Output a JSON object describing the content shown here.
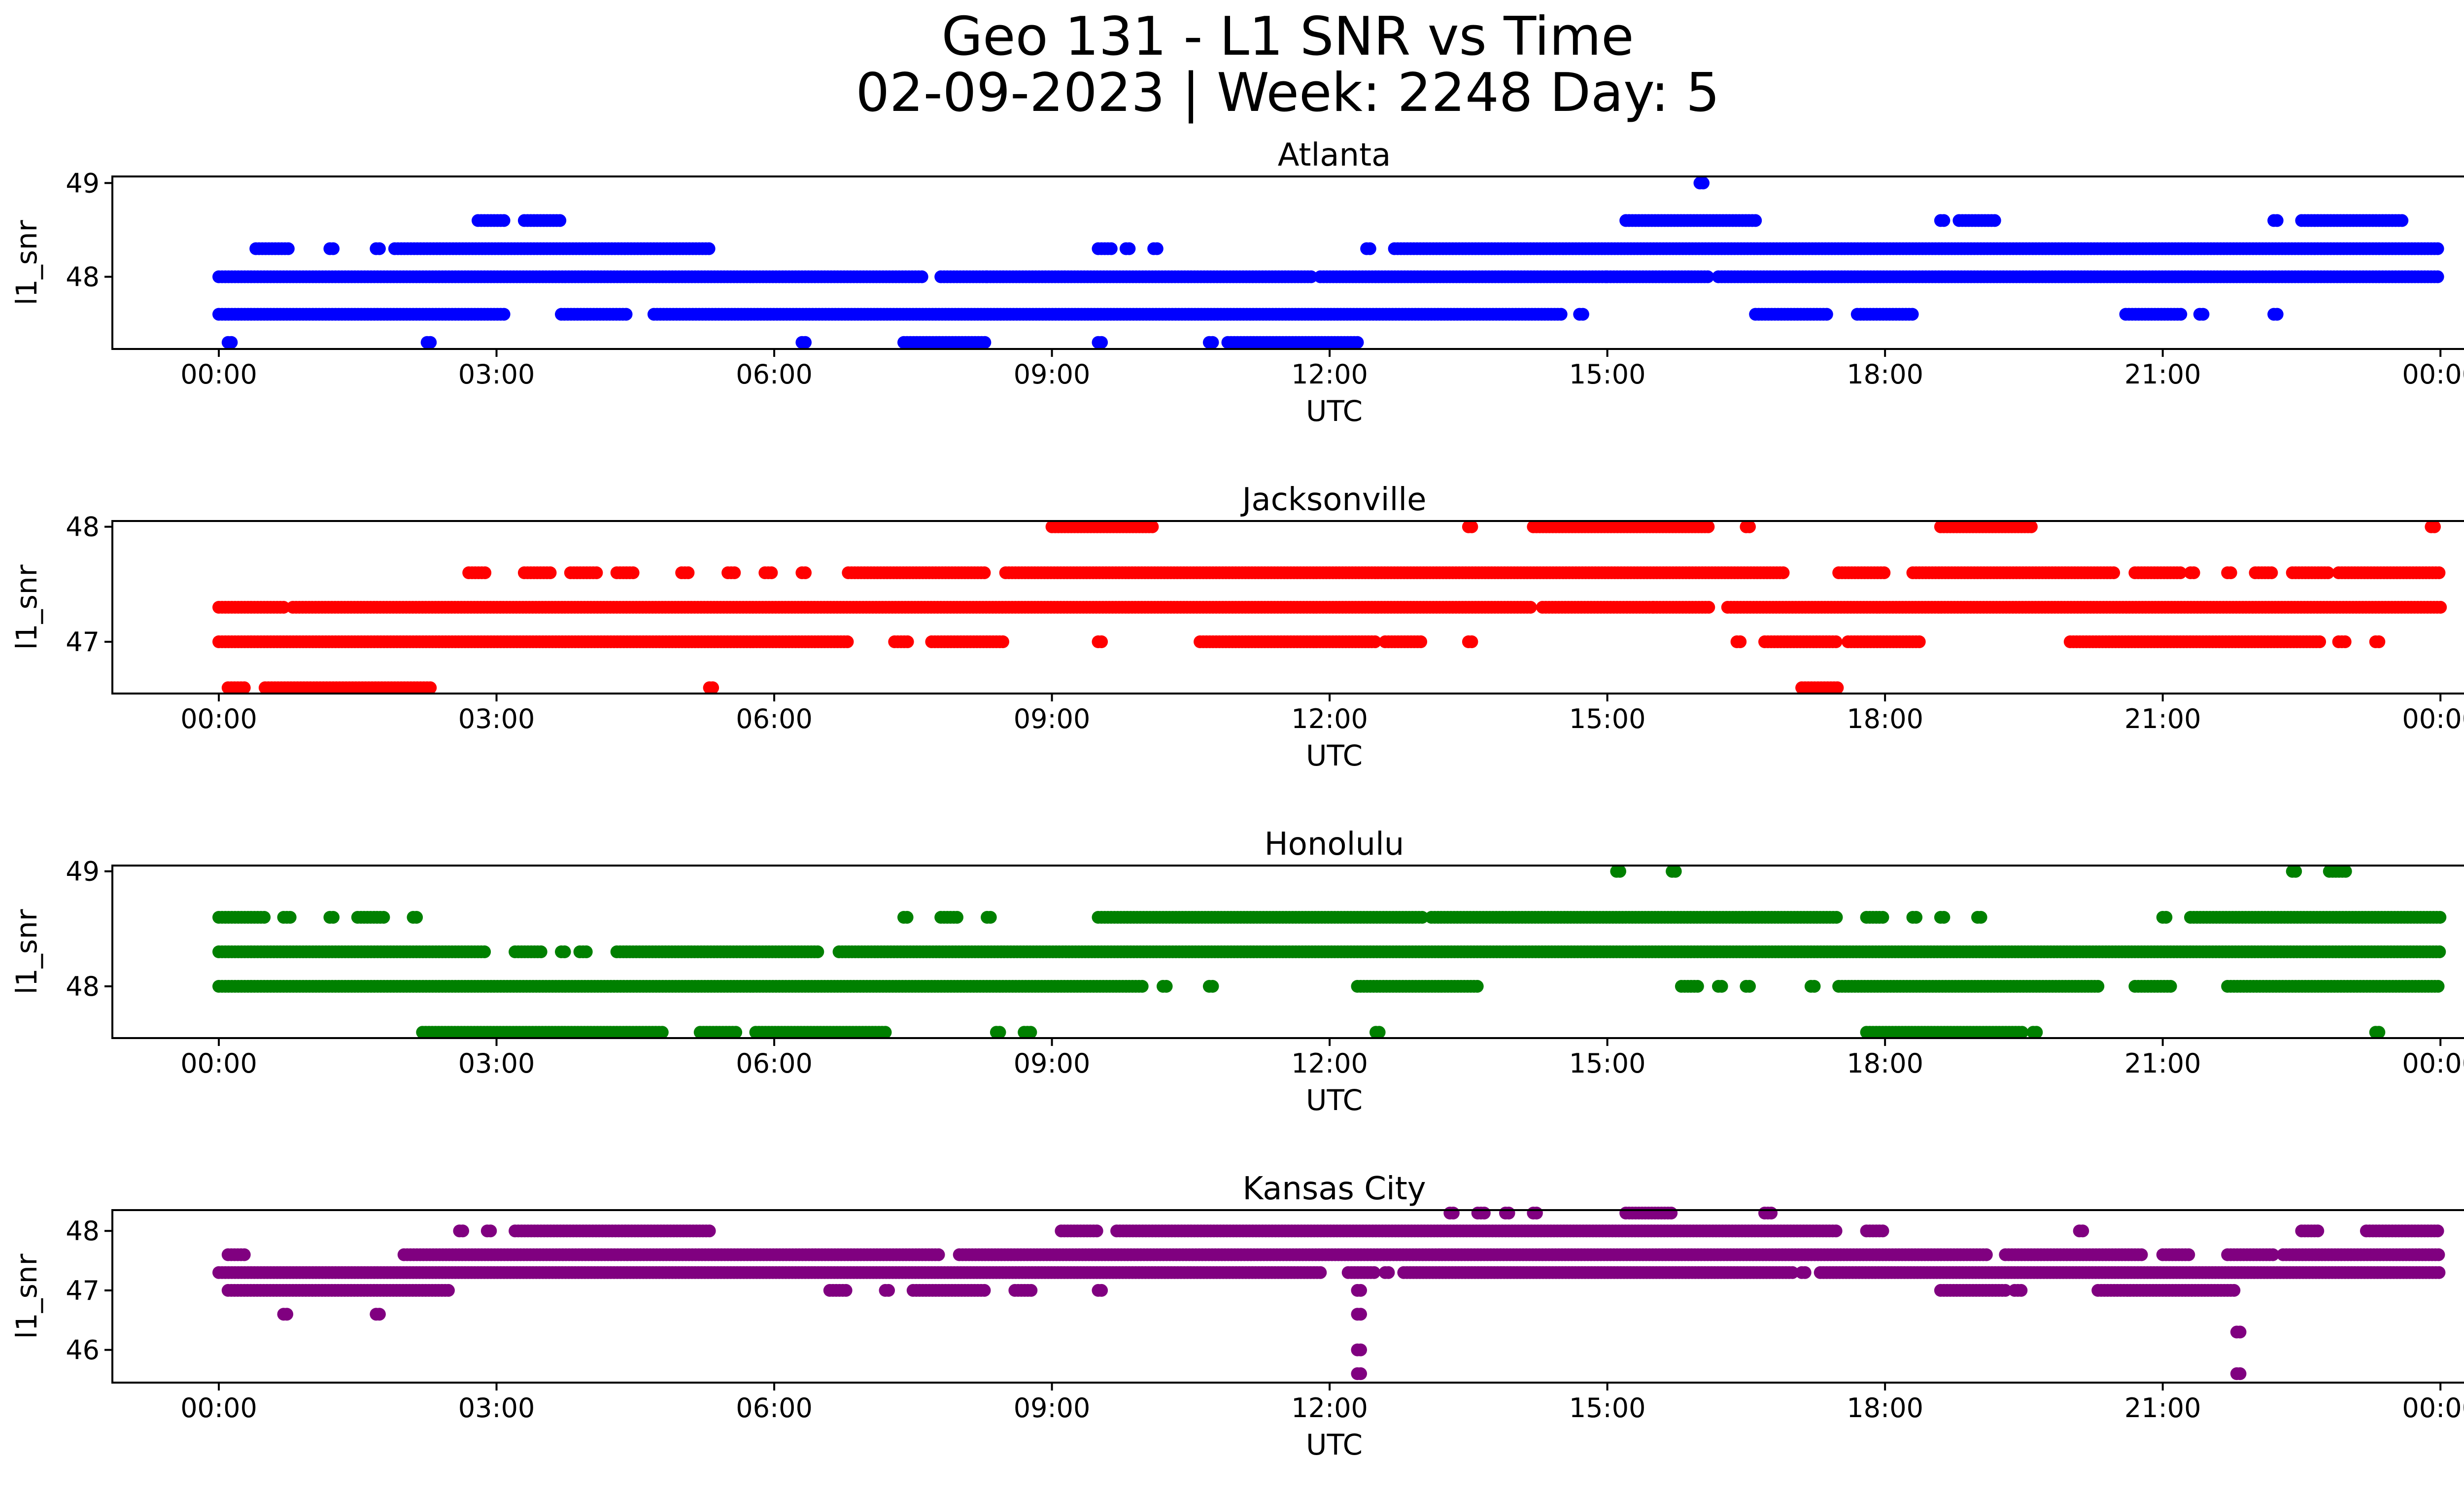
{
  "chart_data": {
    "type": "scatter",
    "title_line1": "Geo 131 - L1 SNR vs Time",
    "title_line2": "02-09-2023 | Week: 2248 Day: 5",
    "xlabel": "UTC",
    "ylabel": "l1_snr",
    "x_unit": "hours UTC",
    "xlim": [
      -1.15,
      25.25
    ],
    "x_ticks": [
      0,
      3,
      6,
      9,
      12,
      15,
      18,
      21,
      24
    ],
    "x_tick_labels": [
      "00:00",
      "03:00",
      "06:00",
      "09:00",
      "12:00",
      "15:00",
      "18:00",
      "21:00",
      "00:00"
    ],
    "grid": false,
    "panels": [
      {
        "name": "Atlanta",
        "color": "#0000ff",
        "ylim": [
          47.23,
          49.07
        ],
        "y_ticks": [
          48,
          49
        ],
        "levels": [
          {
            "y": 48.3,
            "segments": [
              [
                0.4,
                0.75
              ],
              [
                1.2,
                1.25
              ],
              [
                1.7,
                1.75
              ],
              [
                1.9,
                5.3
              ],
              [
                9.5,
                9.65
              ],
              [
                9.8,
                9.85
              ],
              [
                10.1,
                10.15
              ],
              [
                12.4,
                12.45
              ],
              [
                12.7,
                24
              ]
            ]
          },
          {
            "y": 48.0,
            "segments": [
              [
                0,
                7.6
              ],
              [
                7.8,
                8.3
              ],
              [
                8.3,
                11.8
              ],
              [
                11.9,
                15
              ],
              [
                15,
                16.1
              ],
              [
                16.2,
                24
              ]
            ]
          },
          {
            "y": 47.6,
            "segments": [
              [
                0,
                3.1
              ],
              [
                3.7,
                4.4
              ],
              [
                4.7,
                14.5
              ],
              [
                14.7,
                14.75
              ],
              [
                16.6,
                17.4
              ],
              [
                17.7,
                18.3
              ],
              [
                20.6,
                21.2
              ],
              [
                21.4,
                21.45
              ],
              [
                22.2,
                22.25
              ]
            ]
          },
          {
            "y": 48.6,
            "segments": [
              [
                2.8,
                3.1
              ],
              [
                3.3,
                3.7
              ],
              [
                15.2,
                16.6
              ],
              [
                18.6,
                18.65
              ],
              [
                18.8,
                19.2
              ],
              [
                22.2,
                22.25
              ],
              [
                22.5,
                23.6
              ]
            ]
          },
          {
            "y": 47.3,
            "segments": [
              [
                0.1,
                0.15
              ],
              [
                2.25,
                2.3
              ],
              [
                6.3,
                6.35
              ],
              [
                7.4,
                8.3
              ],
              [
                9.5,
                9.55
              ],
              [
                10.7,
                10.75
              ],
              [
                10.9,
                12.3
              ]
            ]
          },
          {
            "y": 49.0,
            "segments": [
              [
                16.0,
                16.05
              ]
            ]
          }
        ]
      },
      {
        "name": "Jacksonville",
        "color": "#ff0000",
        "ylim": [
          46.55,
          48.05
        ],
        "y_ticks": [
          47,
          48
        ],
        "levels": [
          {
            "y": 47.3,
            "segments": [
              [
                0,
                0.7
              ],
              [
                0.8,
                14.2
              ],
              [
                14.3,
                15.5
              ],
              [
                15.5,
                16.1
              ],
              [
                16.3,
                24
              ]
            ]
          },
          {
            "y": 47.0,
            "segments": [
              [
                0,
                6.8
              ],
              [
                7.3,
                7.45
              ],
              [
                7.7,
                8.5
              ],
              [
                9.5,
                9.55
              ],
              [
                10.6,
                12.5
              ],
              [
                12.6,
                13.0
              ],
              [
                13.5,
                13.55
              ],
              [
                16.4,
                16.45
              ],
              [
                16.7,
                17.5
              ],
              [
                17.6,
                18.4
              ],
              [
                20.0,
                22.7
              ],
              [
                22.9,
                23.0
              ],
              [
                23.3,
                23.35
              ]
            ]
          },
          {
            "y": 47.6,
            "segments": [
              [
                2.7,
                2.9
              ],
              [
                3.3,
                3.6
              ],
              [
                3.8,
                4.1
              ],
              [
                4.3,
                4.5
              ],
              [
                5.0,
                5.1
              ],
              [
                5.5,
                5.6
              ],
              [
                5.9,
                6.0
              ],
              [
                6.3,
                6.35
              ],
              [
                6.8,
                8.3
              ],
              [
                8.5,
                16.9
              ],
              [
                17.5,
                18.0
              ],
              [
                18.3,
                20.5
              ],
              [
                20.7,
                21.2
              ],
              [
                21.3,
                21.35
              ],
              [
                21.7,
                21.75
              ],
              [
                22.0,
                22.2
              ],
              [
                22.4,
                22.8
              ],
              [
                22.9,
                24
              ]
            ]
          },
          {
            "y": 48.0,
            "segments": [
              [
                9.0,
                10.1
              ],
              [
                13.5,
                13.55
              ],
              [
                14.2,
                16.1
              ],
              [
                16.5,
                16.55
              ],
              [
                18.6,
                19.6
              ],
              [
                23.9,
                23.95
              ]
            ]
          },
          {
            "y": 46.6,
            "segments": [
              [
                0.1,
                0.3
              ],
              [
                0.5,
                2.3
              ],
              [
                5.3,
                5.35
              ],
              [
                17.1,
                17.5
              ]
            ]
          }
        ]
      },
      {
        "name": "Honolulu",
        "color": "#008000",
        "ylim": [
          47.55,
          49.05
        ],
        "y_ticks": [
          48,
          49
        ],
        "levels": [
          {
            "y": 48.3,
            "segments": [
              [
                0,
                2.9
              ],
              [
                3.2,
                3.5
              ],
              [
                3.7,
                3.75
              ],
              [
                3.9,
                4.0
              ],
              [
                4.3,
                6.5
              ],
              [
                6.7,
                24
              ]
            ]
          },
          {
            "y": 48.0,
            "segments": [
              [
                0,
                10.0
              ],
              [
                10.2,
                10.25
              ],
              [
                10.7,
                10.75
              ],
              [
                12.3,
                13.6
              ],
              [
                15.8,
                16.0
              ],
              [
                16.2,
                16.25
              ],
              [
                16.5,
                16.55
              ],
              [
                17.2,
                17.25
              ],
              [
                17.5,
                20.3
              ],
              [
                20.7,
                21.1
              ],
              [
                21.7,
                24
              ]
            ]
          },
          {
            "y": 48.6,
            "segments": [
              [
                0,
                0.5
              ],
              [
                0.7,
                0.8
              ],
              [
                1.2,
                1.25
              ],
              [
                1.5,
                1.8
              ],
              [
                2.1,
                2.15
              ],
              [
                7.4,
                7.45
              ],
              [
                7.8,
                8.0
              ],
              [
                8.3,
                8.35
              ],
              [
                9.5,
                13.0
              ],
              [
                13.1,
                17.5
              ],
              [
                17.8,
                18.0
              ],
              [
                18.3,
                18.35
              ],
              [
                18.6,
                18.65
              ],
              [
                19.0,
                19.05
              ],
              [
                21.0,
                21.05
              ],
              [
                21.3,
                24
              ]
            ]
          },
          {
            "y": 47.6,
            "segments": [
              [
                2.2,
                4.8
              ],
              [
                5.2,
                5.6
              ],
              [
                5.8,
                7.2
              ],
              [
                8.4,
                8.45
              ],
              [
                8.7,
                8.8
              ],
              [
                12.5,
                12.55
              ],
              [
                17.8,
                19.5
              ],
              [
                19.6,
                19.65
              ],
              [
                23.3,
                23.35
              ]
            ]
          },
          {
            "y": 49.0,
            "segments": [
              [
                15.1,
                15.15
              ],
              [
                15.7,
                15.75
              ],
              [
                22.4,
                22.45
              ],
              [
                22.8,
                23.0
              ]
            ]
          }
        ]
      },
      {
        "name": "Kansas City",
        "color": "#800080",
        "ylim": [
          45.45,
          48.35
        ],
        "y_ticks": [
          46,
          47,
          48
        ],
        "levels": [
          {
            "y": 47.3,
            "segments": [
              [
                0,
                11.9
              ],
              [
                12.2,
                12.5
              ],
              [
                12.6,
                12.65
              ],
              [
                12.8,
                17.0
              ],
              [
                17.1,
                17.15
              ],
              [
                17.3,
                24
              ]
            ]
          },
          {
            "y": 47.6,
            "segments": [
              [
                0.1,
                0.3
              ],
              [
                2.0,
                7.8
              ],
              [
                8.0,
                19.1
              ],
              [
                19.3,
                20.8
              ],
              [
                21.0,
                21.3
              ],
              [
                21.7,
                22.2
              ],
              [
                22.3,
                24
              ]
            ]
          },
          {
            "y": 47.0,
            "segments": [
              [
                0.1,
                2.5
              ],
              [
                6.6,
                6.8
              ],
              [
                7.2,
                7.25
              ],
              [
                7.5,
                8.3
              ],
              [
                8.6,
                8.8
              ],
              [
                9.5,
                9.55
              ],
              [
                12.3,
                12.35
              ],
              [
                18.6,
                19.3
              ],
              [
                19.4,
                19.5
              ],
              [
                20.3,
                21.8
              ]
            ]
          },
          {
            "y": 48.0,
            "segments": [
              [
                2.6,
                2.65
              ],
              [
                2.9,
                2.95
              ],
              [
                3.2,
                5.3
              ],
              [
                9.1,
                9.5
              ],
              [
                9.7,
                17.5
              ],
              [
                17.8,
                18.0
              ],
              [
                20.1,
                20.15
              ],
              [
                22.5,
                22.7
              ],
              [
                23.2,
                24
              ]
            ]
          },
          {
            "y": 48.3,
            "segments": [
              [
                13.3,
                13.35
              ],
              [
                13.6,
                13.7
              ],
              [
                13.9,
                13.95
              ],
              [
                14.2,
                14.25
              ],
              [
                15.2,
                15.7
              ],
              [
                16.7,
                16.8
              ]
            ]
          },
          {
            "y": 46.6,
            "segments": [
              [
                0.7,
                0.75
              ],
              [
                1.7,
                1.75
              ],
              [
                12.3,
                12.35
              ]
            ]
          },
          {
            "y": 46.3,
            "segments": [
              [
                21.8,
                21.85
              ]
            ]
          },
          {
            "y": 46.0,
            "segments": [
              [
                12.3,
                12.35
              ]
            ]
          },
          {
            "y": 45.6,
            "segments": [
              [
                12.3,
                12.35
              ],
              [
                21.8,
                21.85
              ]
            ]
          }
        ]
      }
    ]
  }
}
